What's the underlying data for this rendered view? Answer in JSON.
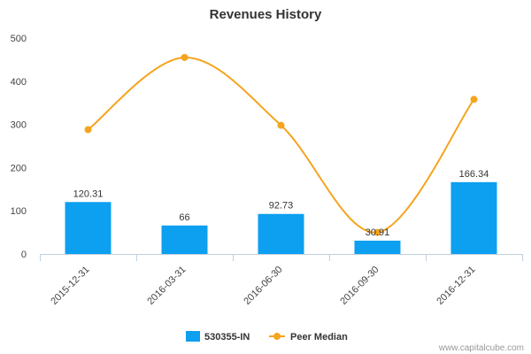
{
  "chart_data": {
    "type": "bar",
    "title": "Revenues History",
    "xlabel": "",
    "ylabel": "",
    "categories": [
      "2015-12-31",
      "2016-03-31",
      "2016-06-30",
      "2016-09-30",
      "2016-12-31"
    ],
    "ylim": [
      0,
      500
    ],
    "yticks": [
      0,
      100,
      200,
      300,
      400,
      500
    ],
    "grid": false,
    "legend_position": "bottom",
    "series": [
      {
        "name": "530355-IN",
        "type": "bar",
        "color": "#0d9ff0",
        "values": [
          120.31,
          66,
          92.73,
          30.91,
          166.34
        ],
        "labels": [
          "120.31",
          "66",
          "92.73",
          "30.91",
          "166.34"
        ]
      },
      {
        "name": "Peer Median",
        "type": "line",
        "smooth": true,
        "color": "#f5a41e",
        "values": [
          288,
          455,
          298,
          50,
          358
        ]
      }
    ]
  },
  "credit": "www.capitalcube.com"
}
